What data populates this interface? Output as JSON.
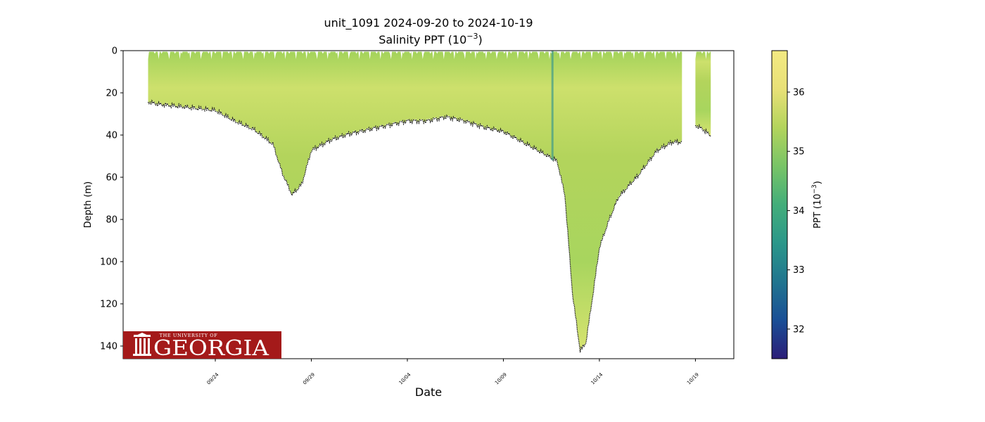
{
  "chart_data": {
    "type": "area",
    "title": "unit_1091 2024-09-20 to 2024-10-19",
    "subtitle_prefix": "Salinity PPT (10",
    "subtitle_exp": "−3",
    "subtitle_suffix": ")",
    "xlabel": "Date",
    "ylabel": "Depth (m)",
    "ylim": [
      146,
      0
    ],
    "y_ticks": [
      0,
      20,
      40,
      60,
      80,
      100,
      120,
      140
    ],
    "x_ticks": [
      {
        "label": "09/24",
        "day": 24.0
      },
      {
        "label": "09/29",
        "day": 29.0
      },
      {
        "label": "10/04",
        "day": 34.0
      },
      {
        "label": "10/09",
        "day": 39.0
      },
      {
        "label": "10/14",
        "day": 44.0
      },
      {
        "label": "10/19",
        "day": 49.0
      }
    ],
    "x_range_day": [
      19.2,
      51.0
    ],
    "colorbar": {
      "label_prefix": "PPT (10",
      "label_exp": "−3",
      "label_suffix": ")",
      "range": [
        31.5,
        36.7
      ],
      "ticks": [
        32,
        33,
        34,
        35,
        36
      ],
      "colors": [
        "#2c1e78",
        "#1a4f96",
        "#21758f",
        "#2b978a",
        "#43ae7a",
        "#78c467",
        "#b3d45c",
        "#e8e077",
        "#f3ea82"
      ]
    },
    "surface_salinity": 35.9,
    "profile_bottom": [
      {
        "day": 20.5,
        "depth": 24
      },
      {
        "day": 21.0,
        "depth": 25
      },
      {
        "day": 22.0,
        "depth": 26
      },
      {
        "day": 23.0,
        "depth": 27
      },
      {
        "day": 24.0,
        "depth": 28
      },
      {
        "day": 25.0,
        "depth": 33
      },
      {
        "day": 26.0,
        "depth": 37
      },
      {
        "day": 27.0,
        "depth": 44
      },
      {
        "day": 27.5,
        "depth": 58
      },
      {
        "day": 28.0,
        "depth": 68
      },
      {
        "day": 28.5,
        "depth": 63
      },
      {
        "day": 29.0,
        "depth": 47
      },
      {
        "day": 30.0,
        "depth": 42
      },
      {
        "day": 31.0,
        "depth": 39
      },
      {
        "day": 32.0,
        "depth": 37
      },
      {
        "day": 33.0,
        "depth": 35
      },
      {
        "day": 34.0,
        "depth": 33
      },
      {
        "day": 35.0,
        "depth": 33
      },
      {
        "day": 36.0,
        "depth": 31
      },
      {
        "day": 37.0,
        "depth": 33
      },
      {
        "day": 38.0,
        "depth": 36
      },
      {
        "day": 39.0,
        "depth": 38
      },
      {
        "day": 40.0,
        "depth": 43
      },
      {
        "day": 41.0,
        "depth": 48
      },
      {
        "day": 41.8,
        "depth": 52
      },
      {
        "day": 42.2,
        "depth": 68
      },
      {
        "day": 42.6,
        "depth": 115
      },
      {
        "day": 43.0,
        "depth": 142
      },
      {
        "day": 43.3,
        "depth": 138
      },
      {
        "day": 43.7,
        "depth": 113
      },
      {
        "day": 44.0,
        "depth": 93
      },
      {
        "day": 44.5,
        "depth": 80
      },
      {
        "day": 45.0,
        "depth": 69
      },
      {
        "day": 46.0,
        "depth": 59
      },
      {
        "day": 47.0,
        "depth": 47
      },
      {
        "day": 47.8,
        "depth": 43
      },
      {
        "day": 48.3,
        "depth": 43
      }
    ],
    "profile_bottom_tail": [
      {
        "day": 49.0,
        "depth": 35
      },
      {
        "day": 49.4,
        "depth": 37
      },
      {
        "day": 49.8,
        "depth": 40
      }
    ],
    "bar_gap_start_day": 48.3,
    "bar_gap_end_day": 49.0
  }
}
